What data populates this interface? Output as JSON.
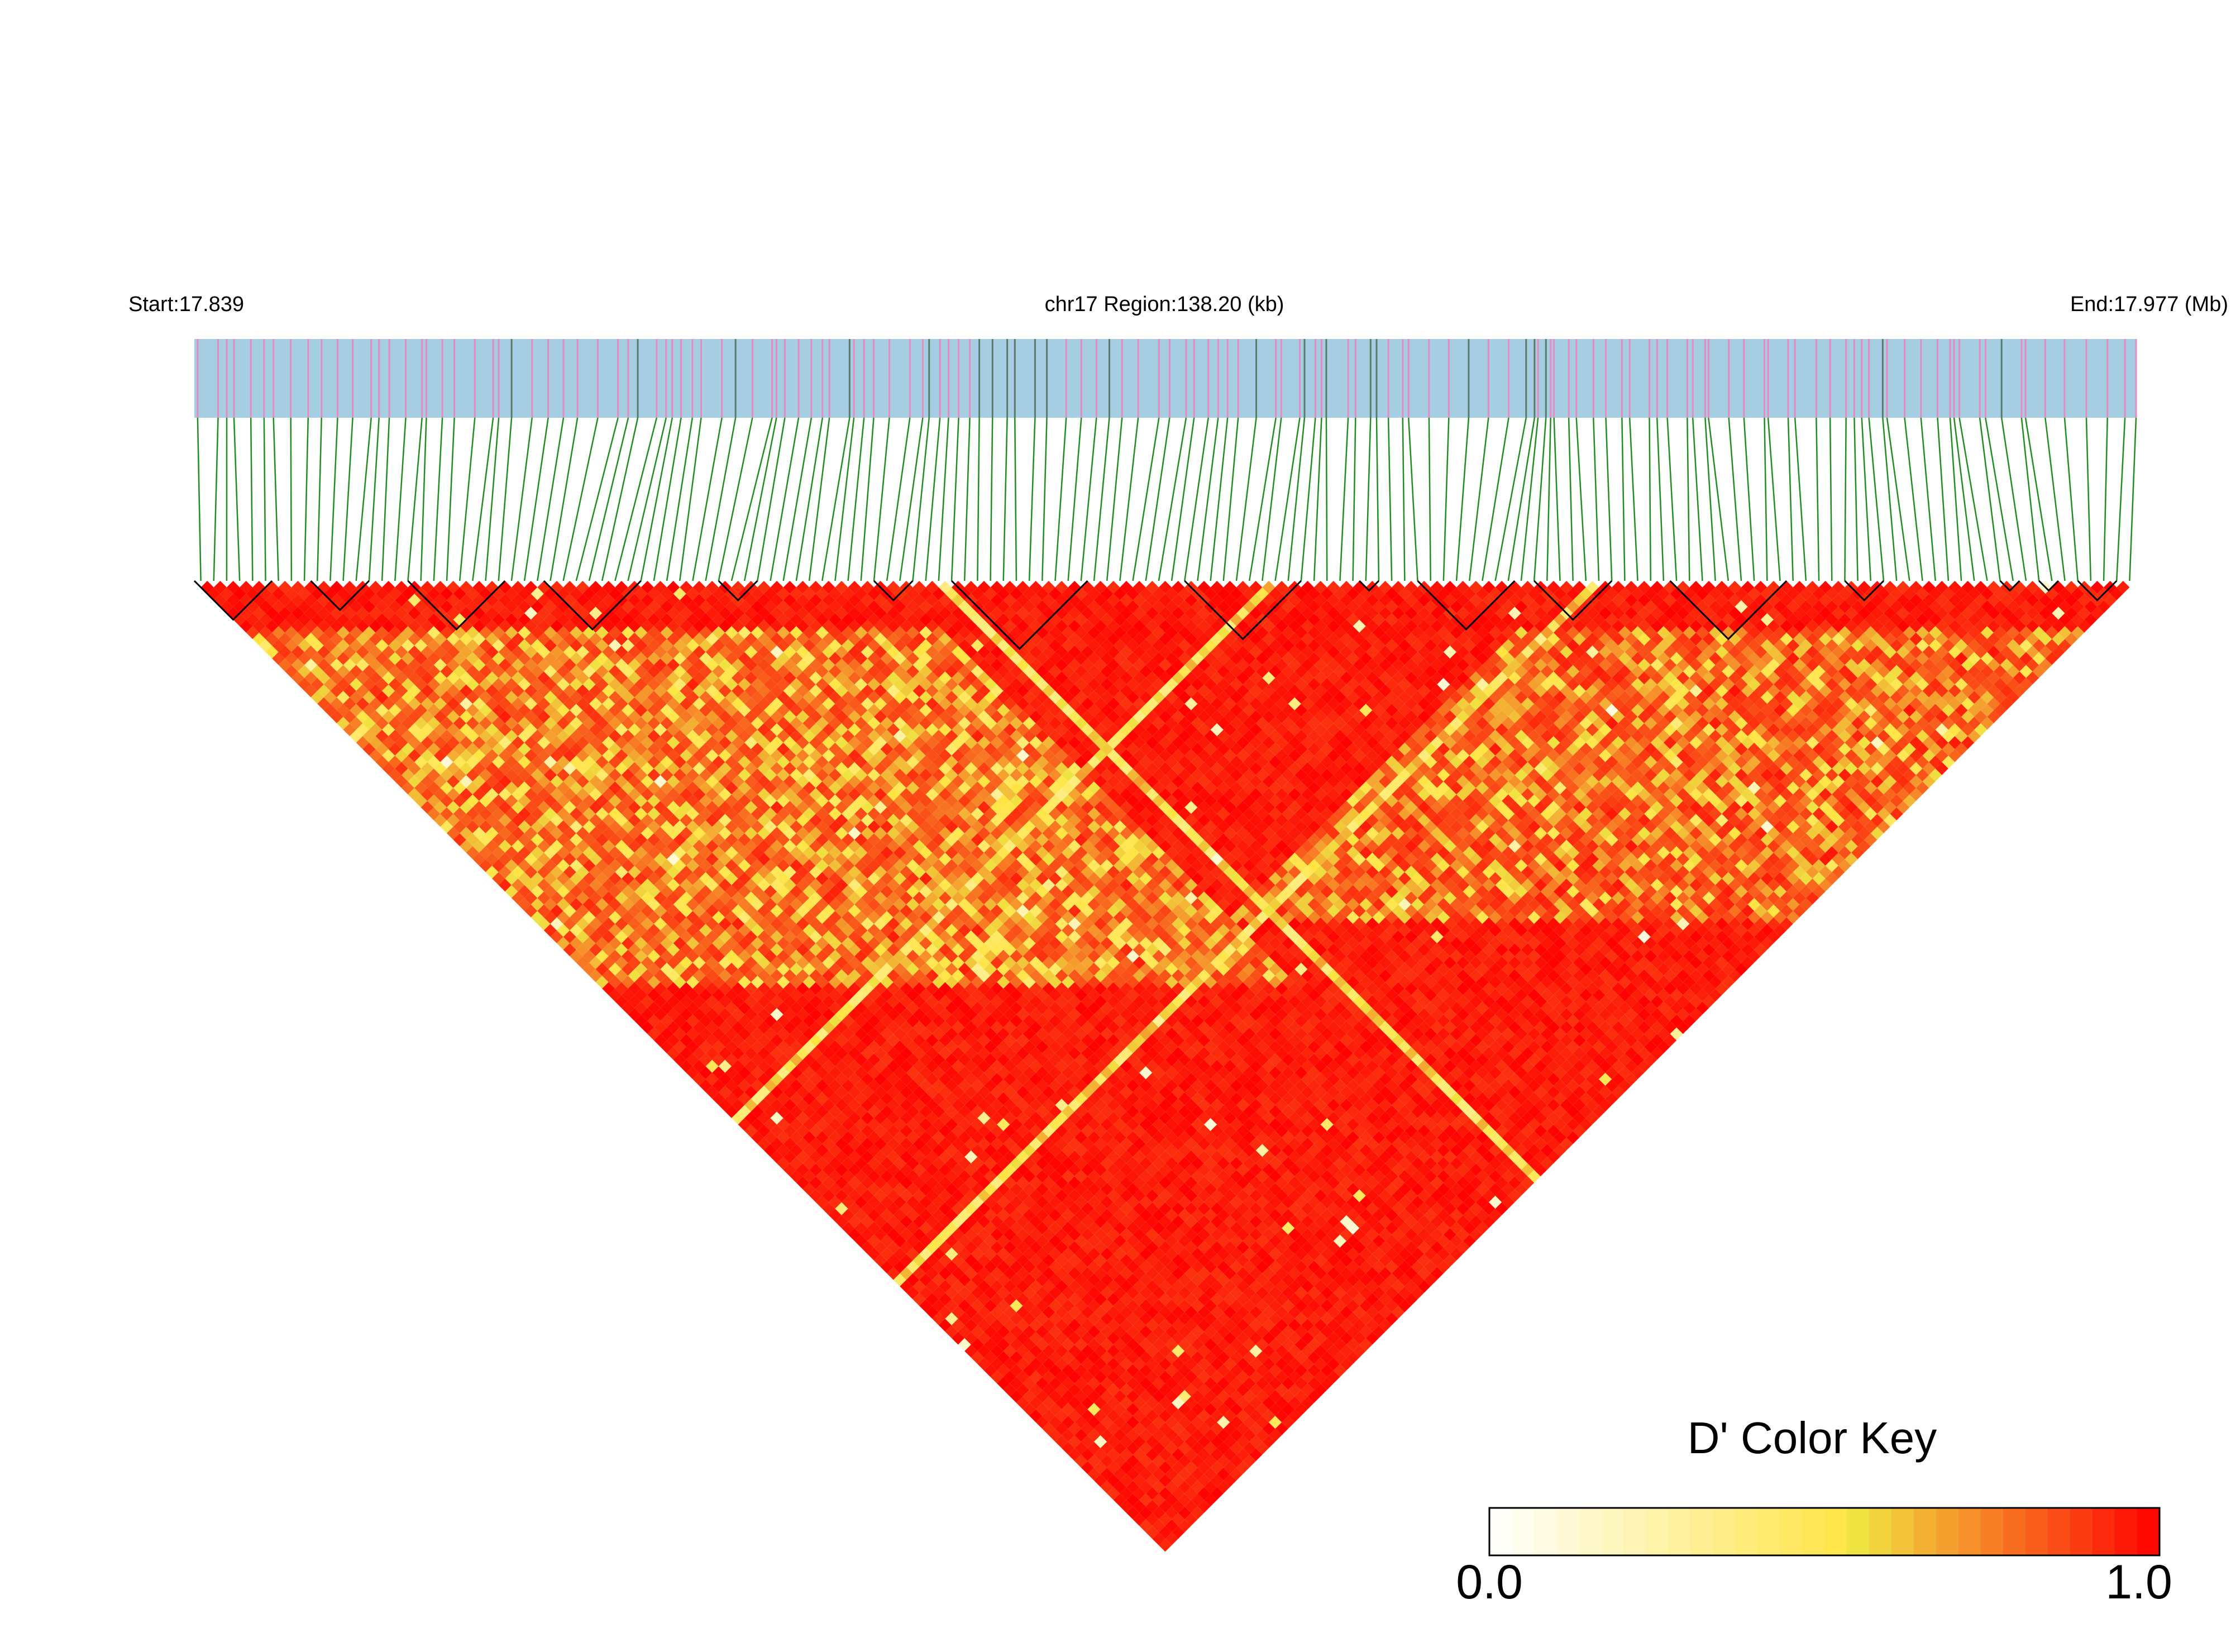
{
  "header": {
    "start_label": "Start:17.839",
    "region_label": "chr17 Region:138.20 (kb)",
    "end_label": "End:17.977 (Mb)"
  },
  "color_key": {
    "title": "D' Color Key",
    "min_label": "0.0",
    "max_label": "1.0",
    "min": 0.0,
    "max": 1.0,
    "colors": [
      "#ffffff",
      "#f0e442",
      "#ff0000"
    ]
  },
  "colors": {
    "track_background": "#a6cee3",
    "snp_tick": "#e78ac3",
    "dense_tick": "#5a7a6a",
    "connector": "#228b22",
    "block_outline": "#000000",
    "high_ld": "#ff0000"
  },
  "chart_data": {
    "type": "heatmap",
    "description_kind": "LD triangle heatmap (pairwise D')",
    "chromosome": "chr17",
    "region_start_mb": 17.839,
    "region_end_mb": 17.977,
    "region_kb": 138.2,
    "value_name": "D'",
    "value_range": [
      0.0,
      1.0
    ],
    "typical_value": 0.95,
    "low_ld_bands": [
      {
        "from_frac": 0.03,
        "to_frac": 0.38,
        "note": "yellow/orange stripe along left side"
      },
      {
        "from_frac": 0.38,
        "to_frac": 0.72,
        "note": "diagonal light line"
      },
      {
        "from_frac": 0.7,
        "to_frac": 0.99,
        "note": "yellow stripe along right side"
      }
    ],
    "haplotype_blocks_frac": [
      [
        0.0,
        0.04
      ],
      [
        0.06,
        0.09
      ],
      [
        0.11,
        0.16
      ],
      [
        0.18,
        0.23
      ],
      [
        0.27,
        0.29
      ],
      [
        0.35,
        0.37
      ],
      [
        0.39,
        0.46
      ],
      [
        0.51,
        0.57
      ],
      [
        0.6,
        0.61
      ],
      [
        0.63,
        0.68
      ],
      [
        0.69,
        0.73
      ],
      [
        0.76,
        0.82
      ],
      [
        0.85,
        0.87
      ],
      [
        0.93,
        0.94
      ],
      [
        0.95,
        0.96
      ],
      [
        0.97,
        0.99
      ]
    ]
  }
}
